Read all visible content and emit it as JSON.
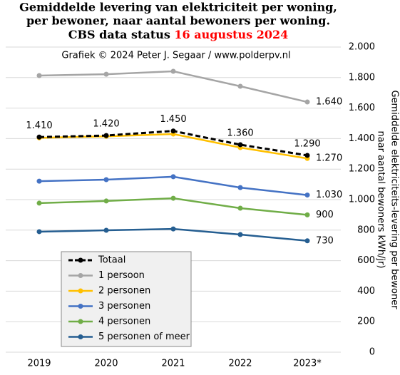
{
  "chart_data": {
    "type": "line",
    "title": [
      "Gemiddelde  levering van elektriciteit  per woning,",
      "per bewoner, naar aantal bewoners per woning.",
      "CBS data status"
    ],
    "title_highlight": "16 augustus 2024",
    "title_highlight_color": "#ff0000",
    "subtitle": "Grafiek  © 2024 Peter J. Segaar / www.polderpv.nl",
    "y_label": [
      "Gemiddelde  elektriciteits-levering per bewoner",
      "naar aantal bewoners kWh/jr)"
    ],
    "categories": [
      "2019",
      "2020",
      "2021",
      "2022",
      "2023*"
    ],
    "ylim": [
      0,
      2000
    ],
    "yticks": [
      0,
      200,
      400,
      600,
      800,
      {
        "value": 1000,
        "label": "1.000"
      },
      {
        "value": 1200,
        "label": "1.200"
      },
      {
        "value": 1400,
        "label": "1.400"
      },
      {
        "value": 1600,
        "label": "1.600"
      },
      {
        "value": 1800,
        "label": "1.800"
      },
      {
        "value": 2000,
        "label": "2.000"
      }
    ],
    "grid": true,
    "y_axis_side": "right",
    "legend_position": "lower-left",
    "series": [
      {
        "name": "Totaal",
        "color": "#000000",
        "dashed": true,
        "values": [
          1410,
          1420,
          1450,
          1360,
          1290
        ],
        "value_labels": [
          "1.410",
          "1.420",
          "1.450",
          "1.360",
          "1.290"
        ]
      },
      {
        "name": "1 persoon",
        "color": "#a5a5a5",
        "values": [
          1813,
          1822,
          1841,
          1743,
          1640
        ],
        "value_labels": [
          null,
          null,
          null,
          null,
          "1.640"
        ]
      },
      {
        "name": "2 personen",
        "color": "#ffc000",
        "values": [
          1405,
          1415,
          1430,
          1341,
          1270
        ],
        "value_labels": [
          null,
          null,
          null,
          null,
          "1.270"
        ]
      },
      {
        "name": "3 personen",
        "color": "#4472c4",
        "values": [
          1121,
          1131,
          1150,
          1079,
          1030
        ],
        "value_labels": [
          null,
          null,
          null,
          null,
          "1.030"
        ]
      },
      {
        "name": "4 personen",
        "color": "#70ad47",
        "values": [
          977,
          991,
          1009,
          944,
          900
        ],
        "value_labels": [
          null,
          null,
          null,
          null,
          "900"
        ]
      },
      {
        "name": "5 personen of meer",
        "color": "#255e91",
        "values": [
          790,
          799,
          808,
          771,
          730
        ],
        "value_labels": [
          null,
          null,
          null,
          null,
          "730"
        ]
      }
    ]
  }
}
